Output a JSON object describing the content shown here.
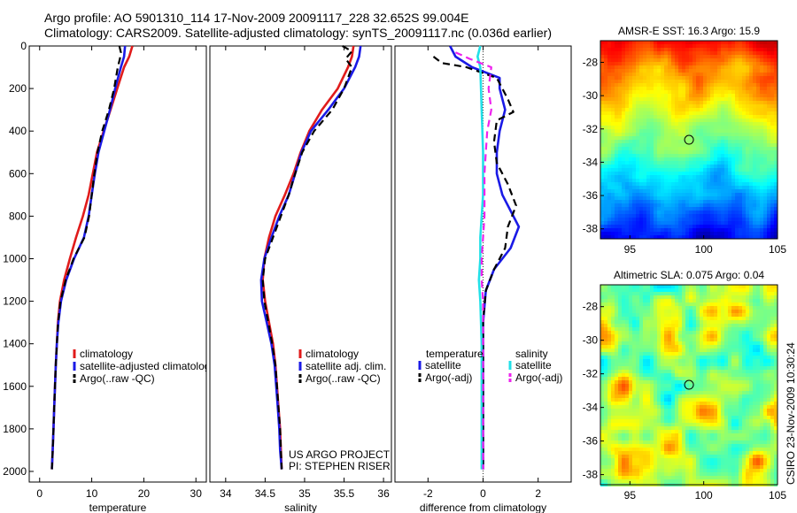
{
  "header": {
    "line1": "Argo profile: AO 5901310_114 17-Nov-2009 20091117_228 32.652S 99.004E",
    "line2": "Climatology: CARS2009. Satellite-adjusted climatology: synTS_20091117.nc (0.036d earlier)"
  },
  "side_stamp": "CSIRO 23-Nov-2009 10:30:24",
  "project_note": [
    "US ARGO PROJECT",
    "PI: STEPHEN RISER"
  ],
  "colors": {
    "climatology": "#e01b1b",
    "satellite": "#1a1ae6",
    "argo": "#000000",
    "sat_salinity": "#22e0e8",
    "argo_salinity": "#ee22ee"
  },
  "chart_data": [
    {
      "id": "temperature",
      "type": "line",
      "title": "",
      "xlabel": "temperature",
      "ylabel": "",
      "xlim": [
        -2,
        32
      ],
      "ylim": [
        0,
        2050
      ],
      "y_reversed": true,
      "xticks": [
        0,
        10,
        20,
        30
      ],
      "yticks": [
        0,
        200,
        400,
        600,
        800,
        1000,
        1200,
        1400,
        1600,
        1800,
        2000
      ],
      "legend": [
        "climatology",
        "satellite-adjusted climatology",
        "Argo(..raw -QC)"
      ],
      "series": [
        {
          "name": "climatology",
          "style": "solid",
          "color_key": "climatology",
          "points": [
            [
              17.8,
              0
            ],
            [
              17.2,
              50
            ],
            [
              16.2,
              100
            ],
            [
              14.9,
              200
            ],
            [
              13.6,
              300
            ],
            [
              12.3,
              400
            ],
            [
              11.0,
              500
            ],
            [
              10.2,
              600
            ],
            [
              9.4,
              700
            ],
            [
              8.3,
              800
            ],
            [
              7.0,
              900
            ],
            [
              5.8,
              1000
            ],
            [
              4.7,
              1100
            ],
            [
              3.9,
              1200
            ],
            [
              3.5,
              1300
            ],
            [
              3.3,
              1400
            ],
            [
              3.1,
              1500
            ],
            [
              2.95,
              1600
            ],
            [
              2.8,
              1700
            ],
            [
              2.65,
              1800
            ],
            [
              2.5,
              1900
            ],
            [
              2.35,
              1990
            ]
          ]
        },
        {
          "name": "satellite-adjusted climatology",
          "style": "solid",
          "color_key": "satellite",
          "points": [
            [
              16.4,
              0
            ],
            [
              16.2,
              50
            ],
            [
              15.6,
              100
            ],
            [
              14.5,
              200
            ],
            [
              13.5,
              300
            ],
            [
              12.4,
              400
            ],
            [
              11.3,
              500
            ],
            [
              10.6,
              600
            ],
            [
              10.0,
              700
            ],
            [
              9.4,
              800
            ],
            [
              8.5,
              900
            ],
            [
              6.6,
              1000
            ],
            [
              5.1,
              1100
            ],
            [
              4.1,
              1200
            ],
            [
              3.6,
              1300
            ],
            [
              3.3,
              1400
            ],
            [
              3.1,
              1500
            ],
            [
              2.95,
              1600
            ],
            [
              2.8,
              1700
            ],
            [
              2.65,
              1800
            ],
            [
              2.5,
              1900
            ],
            [
              2.35,
              1990
            ]
          ]
        },
        {
          "name": "Argo(..raw -QC)",
          "style": "dashed",
          "color_key": "argo",
          "points": [
            [
              15.3,
              0
            ],
            [
              15.6,
              30
            ],
            [
              15.4,
              60
            ],
            [
              15.0,
              100
            ],
            [
              14.3,
              200
            ],
            [
              13.3,
              300
            ],
            [
              12.0,
              400
            ],
            [
              11.1,
              500
            ],
            [
              10.5,
              600
            ],
            [
              10.0,
              700
            ],
            [
              9.5,
              800
            ],
            [
              8.6,
              900
            ],
            [
              6.5,
              1000
            ],
            [
              5.0,
              1100
            ],
            [
              4.0,
              1200
            ],
            [
              3.55,
              1300
            ],
            [
              3.3,
              1400
            ],
            [
              3.1,
              1500
            ],
            [
              2.95,
              1600
            ],
            [
              2.8,
              1700
            ],
            [
              2.65,
              1800
            ],
            [
              2.5,
              1900
            ],
            [
              2.35,
              1990
            ]
          ]
        }
      ]
    },
    {
      "id": "salinity",
      "type": "line",
      "title": "",
      "xlabel": "salinity",
      "ylabel": "",
      "xlim": [
        33.8,
        36.1
      ],
      "ylim": [
        0,
        2050
      ],
      "y_reversed": true,
      "xticks": [
        34,
        34.5,
        35,
        35.5,
        36
      ],
      "legend": [
        "climatology",
        "satellite adj. clim.",
        "Argo(..raw -QC)"
      ],
      "series": [
        {
          "name": "climatology",
          "style": "solid",
          "color_key": "climatology",
          "points": [
            [
              35.62,
              0
            ],
            [
              35.6,
              50
            ],
            [
              35.55,
              100
            ],
            [
              35.42,
              200
            ],
            [
              35.22,
              300
            ],
            [
              35.06,
              400
            ],
            [
              34.95,
              500
            ],
            [
              34.86,
              600
            ],
            [
              34.75,
              700
            ],
            [
              34.63,
              800
            ],
            [
              34.55,
              900
            ],
            [
              34.49,
              1000
            ],
            [
              34.47,
              1100
            ],
            [
              34.5,
              1200
            ],
            [
              34.55,
              1300
            ],
            [
              34.6,
              1400
            ],
            [
              34.63,
              1500
            ],
            [
              34.65,
              1600
            ],
            [
              34.67,
              1700
            ],
            [
              34.69,
              1800
            ],
            [
              34.7,
              1900
            ],
            [
              34.71,
              1990
            ]
          ]
        },
        {
          "name": "satellite adj. clim.",
          "style": "solid",
          "color_key": "satellite",
          "points": [
            [
              35.71,
              0
            ],
            [
              35.69,
              50
            ],
            [
              35.64,
              100
            ],
            [
              35.5,
              200
            ],
            [
              35.3,
              300
            ],
            [
              35.08,
              400
            ],
            [
              34.96,
              500
            ],
            [
              34.88,
              600
            ],
            [
              34.8,
              700
            ],
            [
              34.68,
              800
            ],
            [
              34.58,
              900
            ],
            [
              34.49,
              1000
            ],
            [
              34.45,
              1100
            ],
            [
              34.46,
              1200
            ],
            [
              34.52,
              1300
            ],
            [
              34.58,
              1400
            ],
            [
              34.62,
              1500
            ],
            [
              34.64,
              1600
            ],
            [
              34.66,
              1700
            ],
            [
              34.68,
              1800
            ],
            [
              34.69,
              1900
            ],
            [
              34.71,
              1990
            ]
          ]
        },
        {
          "name": "Argo(..raw -QC)",
          "style": "dashed",
          "color_key": "argo",
          "points": [
            [
              35.48,
              0
            ],
            [
              35.6,
              25
            ],
            [
              35.52,
              60
            ],
            [
              35.6,
              100
            ],
            [
              35.5,
              200
            ],
            [
              35.35,
              300
            ],
            [
              35.12,
              400
            ],
            [
              34.97,
              500
            ],
            [
              34.88,
              600
            ],
            [
              34.8,
              700
            ],
            [
              34.7,
              800
            ],
            [
              34.6,
              900
            ],
            [
              34.5,
              1000
            ],
            [
              34.47,
              1100
            ],
            [
              34.49,
              1200
            ],
            [
              34.54,
              1300
            ],
            [
              34.59,
              1400
            ],
            [
              34.63,
              1500
            ],
            [
              34.65,
              1600
            ],
            [
              34.67,
              1700
            ],
            [
              34.69,
              1800
            ],
            [
              34.7,
              1900
            ],
            [
              34.71,
              1990
            ]
          ]
        }
      ]
    },
    {
      "id": "difference",
      "type": "line",
      "title": "",
      "xlabel": "difference from climatology",
      "ylabel": "",
      "xlim": [
        -3.2,
        3.2
      ],
      "ylim": [
        0,
        2050
      ],
      "y_reversed": true,
      "xticks": [
        -2,
        0,
        2
      ],
      "legend": {
        "temperature": [
          "satellite",
          "Argo(-adj)"
        ],
        "salinity": [
          "satellite",
          "Argo(-adj)"
        ]
      },
      "legend_headers": [
        "temperature",
        "salinity"
      ],
      "series": [
        {
          "name": "temperature satellite",
          "style": "solid",
          "color_key": "satellite",
          "points": [
            [
              -1.2,
              0
            ],
            [
              -1.0,
              50
            ],
            [
              -0.4,
              100
            ],
            [
              0.6,
              150
            ],
            [
              0.6,
              200
            ],
            [
              0.8,
              300
            ],
            [
              0.6,
              400
            ],
            [
              0.5,
              500
            ],
            [
              0.5,
              600
            ],
            [
              0.7,
              700
            ],
            [
              1.1,
              800
            ],
            [
              1.3,
              850
            ],
            [
              1.0,
              950
            ],
            [
              0.4,
              1050
            ],
            [
              0.1,
              1150
            ],
            [
              0.0,
              1300
            ],
            [
              0.0,
              1500
            ],
            [
              0.0,
              1700
            ],
            [
              0.0,
              1990
            ]
          ]
        },
        {
          "name": "temperature Argo(-adj)",
          "style": "dashed",
          "color_key": "argo",
          "points": [
            [
              -1.8,
              50
            ],
            [
              -1.5,
              80
            ],
            [
              -0.6,
              100
            ],
            [
              0.5,
              150
            ],
            [
              0.9,
              250
            ],
            [
              1.1,
              310
            ],
            [
              0.5,
              350
            ],
            [
              0.4,
              450
            ],
            [
              0.5,
              550
            ],
            [
              0.9,
              650
            ],
            [
              1.2,
              750
            ],
            [
              0.9,
              850
            ],
            [
              0.8,
              950
            ],
            [
              0.4,
              1050
            ],
            [
              0.1,
              1150
            ],
            [
              0.0,
              1300
            ],
            [
              0.0,
              1500
            ],
            [
              0.0,
              1800
            ],
            [
              0.0,
              1990
            ]
          ]
        },
        {
          "name": "salinity satellite",
          "style": "solid",
          "color_key": "sat_salinity",
          "points": [
            [
              -0.1,
              0
            ],
            [
              -0.2,
              50
            ],
            [
              -0.1,
              100
            ],
            [
              -0.05,
              300
            ],
            [
              0.0,
              500
            ],
            [
              0.0,
              700
            ],
            [
              -0.1,
              900
            ],
            [
              -0.1,
              1000
            ],
            [
              -0.15,
              1100
            ],
            [
              -0.1,
              1200
            ],
            [
              -0.05,
              1400
            ],
            [
              -0.05,
              1600
            ],
            [
              -0.05,
              1800
            ],
            [
              -0.05,
              1990
            ]
          ]
        },
        {
          "name": "salinity Argo(-adj)",
          "style": "dashed",
          "color_key": "argo_salinity",
          "points": [
            [
              -1.0,
              30
            ],
            [
              -0.5,
              60
            ],
            [
              0.3,
              100
            ],
            [
              0.2,
              200
            ],
            [
              0.3,
              300
            ],
            [
              0.15,
              400
            ],
            [
              0.1,
              500
            ],
            [
              0.05,
              600
            ],
            [
              0.05,
              800
            ],
            [
              0.0,
              900
            ],
            [
              -0.05,
              1000
            ],
            [
              -0.05,
              1100
            ],
            [
              0.0,
              1200
            ],
            [
              0.0,
              1500
            ],
            [
              0.0,
              1990
            ]
          ]
        }
      ]
    },
    {
      "id": "sst_map",
      "type": "heatmap",
      "title": "AMSR-E SST: 16.3 Argo: 15.9",
      "xlim": [
        93,
        105
      ],
      "ylim": [
        -38.6,
        -26.7
      ],
      "xticks": [
        95,
        100,
        105
      ],
      "yticks": [
        -28,
        -30,
        -32,
        -34,
        -36,
        -38
      ],
      "marker": {
        "lon": 99.004,
        "lat": -32.652
      }
    },
    {
      "id": "sla_map",
      "type": "heatmap",
      "title": "Altimetric SLA: 0.075 Argo: 0.04",
      "xlim": [
        93,
        105
      ],
      "ylim": [
        -38.6,
        -26.7
      ],
      "xticks": [
        95,
        100,
        105
      ],
      "yticks": [
        -28,
        -30,
        -32,
        -34,
        -36,
        -38
      ],
      "marker": {
        "lon": 99.004,
        "lat": -32.652
      }
    }
  ]
}
